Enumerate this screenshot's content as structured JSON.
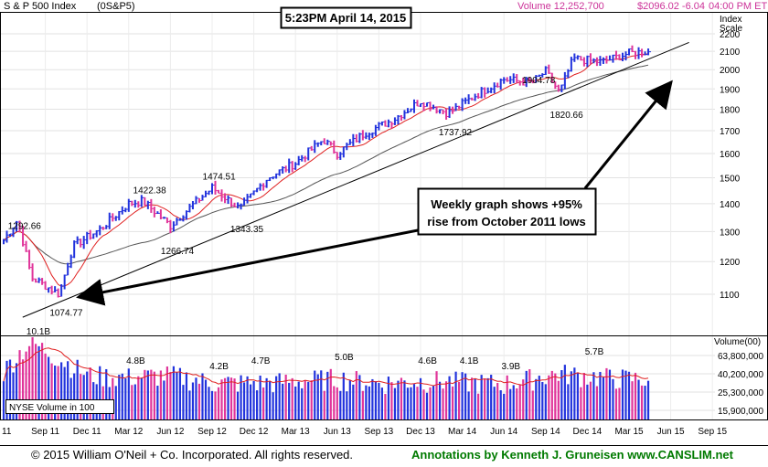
{
  "header": {
    "index_name": "S & P 500 Index",
    "symbol": "(0S&P5)",
    "volume": "Volume 12,252,700",
    "last_price": "$2096.02 -6.04",
    "time": "04:00 PM ET"
  },
  "timestamp_box": "5:23PM April 14, 2015",
  "callout": {
    "line1": "Weekly graph shows +95%",
    "line2": "rise from October 2011 lows"
  },
  "price_axis": {
    "title_line1": "Index",
    "title_line2": "Scale",
    "scale": "log"
  },
  "volume_axis": {
    "title": "Volume(00)"
  },
  "volume_legend": "NYSE Volume in 100",
  "x_axis_labels": [
    "11",
    "Sep 11",
    "Dec 11",
    "Mar 12",
    "Jun 12",
    "Sep 12",
    "Dec 12",
    "Mar 13",
    "Jun 13",
    "Sep 13",
    "Dec 13",
    "Mar 14",
    "Jun 14",
    "Sep 14",
    "Dec 14",
    "Mar 15",
    "Jun 15",
    "Sep 15"
  ],
  "colors": {
    "up": "#2233dd",
    "down": "#e0359a",
    "ma_short": "#e02020",
    "ma_long": "#555555",
    "trend": "#000000",
    "volume_ma": "#e02020"
  },
  "footer": {
    "copyright": "© 2015  William O'Neil + Co. Incorporated. All rights reserved.",
    "annotations": "Annotations by Kenneth J. Gruneisen www.CANSLIM.net"
  },
  "chart_data": [
    {
      "type": "candlestick",
      "title": "S & P 500 Index",
      "yscale": "log",
      "ylim": [
        1000,
        2250
      ],
      "yticks": [
        1100,
        1200,
        1300,
        1400,
        1500,
        1600,
        1700,
        1800,
        1900,
        2000,
        2100,
        2200
      ],
      "x_range": [
        "2011-06",
        "2015-10"
      ],
      "price_anchors": [
        {
          "date": "2011-06",
          "close": 1270
        },
        {
          "date": "2011-07",
          "close": 1340
        },
        {
          "date": "2011-08",
          "close": 1150
        },
        {
          "date": "2011-10",
          "close": 1100
        },
        {
          "date": "2011-11",
          "close": 1250
        },
        {
          "date": "2012-01",
          "close": 1310
        },
        {
          "date": "2012-03",
          "close": 1400
        },
        {
          "date": "2012-04",
          "close": 1410
        },
        {
          "date": "2012-06",
          "close": 1320
        },
        {
          "date": "2012-09",
          "close": 1460
        },
        {
          "date": "2012-11",
          "close": 1380
        },
        {
          "date": "2013-01",
          "close": 1500
        },
        {
          "date": "2013-03",
          "close": 1560
        },
        {
          "date": "2013-05",
          "close": 1660
        },
        {
          "date": "2013-06",
          "close": 1600
        },
        {
          "date": "2013-08",
          "close": 1690
        },
        {
          "date": "2013-10",
          "close": 1750
        },
        {
          "date": "2013-12",
          "close": 1840
        },
        {
          "date": "2014-02",
          "close": 1780
        },
        {
          "date": "2014-04",
          "close": 1870
        },
        {
          "date": "2014-06",
          "close": 1950
        },
        {
          "date": "2014-08",
          "close": 1930
        },
        {
          "date": "2014-09",
          "close": 1990
        },
        {
          "date": "2014-10",
          "close": 1880
        },
        {
          "date": "2014-11",
          "close": 2060
        },
        {
          "date": "2015-01",
          "close": 2040
        },
        {
          "date": "2015-03",
          "close": 2090
        },
        {
          "date": "2015-04",
          "close": 2096
        }
      ],
      "annotations": [
        {
          "date": "2011-07",
          "value": 1292.66,
          "label": "1292.66"
        },
        {
          "date": "2011-10",
          "value": 1074.77,
          "label": "1074.77"
        },
        {
          "date": "2012-04",
          "value": 1422.38,
          "label": "1422.38"
        },
        {
          "date": "2012-06",
          "value": 1266.74,
          "label": "1266.74"
        },
        {
          "date": "2012-09",
          "value": 1474.51,
          "label": "1474.51"
        },
        {
          "date": "2012-11",
          "value": 1343.35,
          "label": "1343.35"
        },
        {
          "date": "2014-02",
          "value": 1737.92,
          "label": "1737.92"
        },
        {
          "date": "2014-08",
          "value": 1904.78,
          "label": "1904.78"
        },
        {
          "date": "2014-10",
          "value": 1820.66,
          "label": "1820.66"
        }
      ],
      "trendline": [
        {
          "date": "2011-10",
          "value": 1050
        },
        {
          "date": "2015-06",
          "value": 2150
        }
      ]
    },
    {
      "type": "bar",
      "title": "NYSE Volume in 100",
      "yticks": [
        15900000,
        25300000,
        40200000,
        63800000
      ],
      "ytick_labels": [
        "15,900,000",
        "25,300,000",
        "40,200,000",
        "63,800,000"
      ],
      "volume_anchors": [
        {
          "date": "2011-06",
          "volume": 43000000
        },
        {
          "date": "2011-08",
          "volume": 90000000
        },
        {
          "date": "2011-10",
          "volume": 60000000
        },
        {
          "date": "2011-12",
          "volume": 40000000
        },
        {
          "date": "2012-03",
          "volume": 38000000
        },
        {
          "date": "2012-06",
          "volume": 40000000
        },
        {
          "date": "2012-09",
          "volume": 33000000
        },
        {
          "date": "2013-01",
          "volume": 33000000
        },
        {
          "date": "2013-06",
          "volume": 37000000
        },
        {
          "date": "2013-09",
          "volume": 33000000
        },
        {
          "date": "2014-01",
          "volume": 35000000
        },
        {
          "date": "2014-06",
          "volume": 32000000
        },
        {
          "date": "2014-10",
          "volume": 42000000
        },
        {
          "date": "2015-01",
          "volume": 38000000
        },
        {
          "date": "2015-04",
          "volume": 36000000
        }
      ],
      "annotations": [
        {
          "date": "2011-08",
          "value": 10100000000,
          "label": "10.1B"
        },
        {
          "date": "2012-03",
          "value": 4800000000,
          "label": "4.8B"
        },
        {
          "date": "2012-09",
          "value": 4200000000,
          "label": "4.2B"
        },
        {
          "date": "2012-12",
          "value": 4700000000,
          "label": "4.7B"
        },
        {
          "date": "2013-06",
          "value": 5000000000,
          "label": "5.0B"
        },
        {
          "date": "2013-12",
          "value": 4600000000,
          "label": "4.6B"
        },
        {
          "date": "2014-03",
          "value": 4100000000,
          "label": "4.1B"
        },
        {
          "date": "2014-06",
          "value": 3900000000,
          "label": "3.9B"
        },
        {
          "date": "2014-12",
          "value": 5700000000,
          "label": "5.7B"
        }
      ]
    }
  ]
}
